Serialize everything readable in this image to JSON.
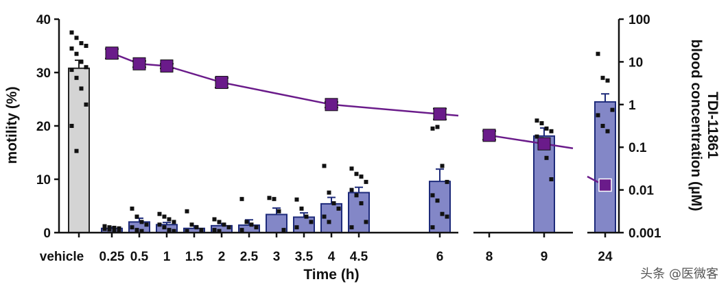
{
  "watermark": "头条 @医微客",
  "chart_data": {
    "type": "bar",
    "xlabel": "Time (h)",
    "ylabel_left": "motility (%)",
    "ylabel_right_line1": "TDI-11861",
    "ylabel_right_line2": "blood concentration (µM)",
    "ylim_left": [
      0,
      40
    ],
    "ylim_right": [
      0.001,
      100
    ],
    "right_scale": "log",
    "yticks_left": [
      "0",
      "10",
      "20",
      "30",
      "40"
    ],
    "yticks_right": [
      "0.001",
      "0.01",
      "0.1",
      "1",
      "10",
      "100"
    ],
    "categories": [
      "vehicle",
      "0.25",
      "0.5",
      "1",
      "1.5",
      "2",
      "2.5",
      "3",
      "3.5",
      "4",
      "4.5",
      "6",
      "8",
      "9",
      "24"
    ],
    "colors": {
      "vehicle_bar": "#d4d4d4",
      "treated_bar": "#8387c7",
      "bar_edge": "#1d2a7a",
      "line": "#6a1b8a",
      "marker": "#6a1b8a",
      "points": "#111111"
    },
    "motility_mean": [
      30.8,
      0.8,
      2.0,
      1.5,
      0.8,
      1.3,
      1.4,
      3.4,
      2.9,
      5.4,
      7.5,
      9.6,
      null,
      18.1,
      24.5
    ],
    "motility_sem": [
      1.5,
      0.2,
      0.7,
      0.4,
      0.5,
      0.4,
      1.0,
      1.2,
      0.8,
      1.2,
      1.0,
      2.3,
      null,
      1.5,
      1.5
    ],
    "motility_points": [
      [
        37.5,
        36.5,
        35.5,
        35,
        34.5,
        33.5,
        32,
        31,
        30.5,
        29,
        27,
        24,
        20,
        15.3
      ],
      [
        1.2,
        1,
        0.9,
        0.8,
        0.7,
        0.6,
        0.5,
        0.4
      ],
      [
        4.5,
        3,
        2,
        1.5,
        1,
        0.5,
        0.3
      ],
      [
        3.5,
        3,
        2.5,
        2,
        1.5,
        1,
        0.5,
        0.3
      ],
      [
        4,
        1.5,
        1,
        0.5,
        0.3
      ],
      [
        2.5,
        2,
        1.5,
        1,
        0.5,
        0.3
      ],
      [
        6.3,
        2,
        1.5,
        1,
        0.5
      ],
      [
        6.5,
        6.3,
        4,
        0.5
      ],
      [
        6.2,
        4.5,
        3,
        2,
        1
      ],
      [
        12.5,
        7.5,
        5.5,
        4.5,
        3,
        2
      ],
      [
        12,
        11,
        10.5,
        9.5,
        8,
        7,
        5.5,
        2,
        1
      ],
      [
        19.5,
        19.8,
        12.5,
        9.5,
        7,
        6,
        3.5,
        3,
        1
      ],
      [],
      [
        21,
        20.5,
        19.5,
        19,
        18,
        17.5,
        14,
        10
      ],
      [
        33.5,
        29,
        28.5,
        23,
        22,
        20,
        19
      ]
    ],
    "line_series": [
      {
        "x": [
          "0.25",
          "0.5",
          "1",
          "2",
          "4",
          "6"
        ],
        "y": [
          16,
          9,
          8,
          3.3,
          1,
          0.6
        ],
        "err_low": [
          12,
          7.5,
          7,
          2.5,
          0.85,
          0.45
        ],
        "err_high": [
          20,
          10.5,
          9,
          4.2,
          1.15,
          0.8
        ]
      },
      {
        "x": [
          "8",
          "9"
        ],
        "y": [
          0.19,
          0.12
        ],
        "err_low": [
          0.15,
          0.12
        ],
        "err_high": [
          0.24,
          0.12
        ]
      },
      {
        "x": [
          "24"
        ],
        "y": [
          0.013
        ],
        "err_low": [
          0.013
        ],
        "err_high": [
          0.013
        ]
      }
    ]
  }
}
